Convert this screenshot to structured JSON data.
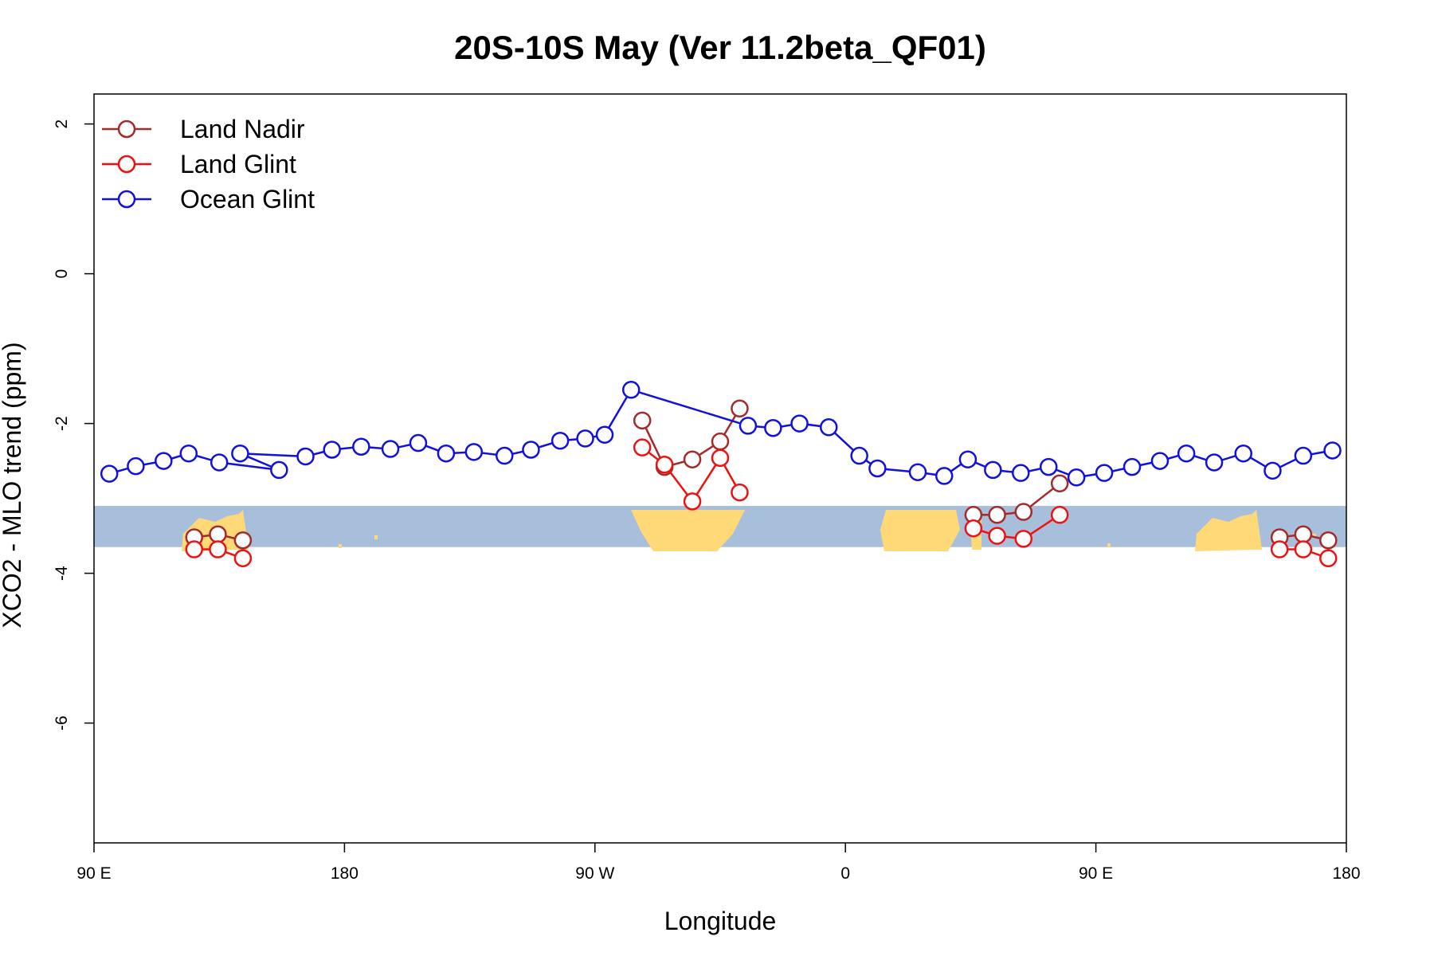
{
  "chart_data": {
    "type": "line",
    "title": "20S-10S May (Ver 11.2beta_QF01)",
    "xlabel": "Longitude",
    "ylabel": "XCO2 - MLO trend (ppm)",
    "xlim": [
      90,
      540
    ],
    "ylim": [
      -7.6,
      2.4
    ],
    "x_ticks": [
      {
        "value": 90,
        "label": "90 E"
      },
      {
        "value": 180,
        "label": "180"
      },
      {
        "value": 270,
        "label": "90 W"
      },
      {
        "value": 360,
        "label": "0"
      },
      {
        "value": 450,
        "label": "90 E"
      },
      {
        "value": 540,
        "label": "180"
      }
    ],
    "y_ticks": [
      {
        "value": 2,
        "label": "2"
      },
      {
        "value": 0,
        "label": "0"
      },
      {
        "value": -2,
        "label": "-2"
      },
      {
        "value": -4,
        "label": "-4"
      },
      {
        "value": -6,
        "label": "-6"
      }
    ],
    "legend_position": "top-left",
    "latitude_band": {
      "y_top": -3.1,
      "y_bottom": -3.65,
      "ocean_color": "#a8bfdc",
      "land_color": "#ffd878"
    },
    "series": [
      {
        "name": "Land Nadir",
        "color": "#a52a2a",
        "segments": [
          {
            "x": [
              126,
              134.5,
              143.5
            ],
            "y": [
              -3.52,
              -3.48,
              -3.56
            ]
          },
          {
            "x": [
              287,
              295,
              305,
              315,
              322
            ],
            "y": [
              -1.96,
              -2.58,
              -2.48,
              -2.24,
              -1.8
            ]
          },
          {
            "x": [
              406,
              414.5,
              424,
              437
            ],
            "y": [
              -3.22,
              -3.22,
              -3.18,
              -2.8
            ]
          },
          {
            "x": [
              516,
              524.5,
              533.5
            ],
            "y": [
              -3.52,
              -3.48,
              -3.56
            ]
          }
        ]
      },
      {
        "name": "Land Glint",
        "color": "#ee1111",
        "segments": [
          {
            "x": [
              126,
              134.5,
              143.5
            ],
            "y": [
              -3.68,
              -3.68,
              -3.8
            ]
          },
          {
            "x": [
              287,
              295,
              305,
              315,
              322
            ],
            "y": [
              -2.32,
              -2.55,
              -3.04,
              -2.46,
              -2.92
            ]
          },
          {
            "x": [
              406,
              414.5,
              424,
              437
            ],
            "y": [
              -3.4,
              -3.5,
              -3.54,
              -3.22
            ]
          },
          {
            "x": [
              516,
              524.5,
              533.5
            ],
            "y": [
              -3.68,
              -3.68,
              -3.8
            ]
          }
        ]
      },
      {
        "name": "Ocean Glint",
        "color": "#1111dd",
        "segments": [
          {
            "x": [
              95.5,
              105,
              115,
              124,
              135,
              156.5,
              142.5,
              166,
              175.5,
              186,
              196.5,
              206.5,
              216.5,
              226.5,
              237.5,
              247,
              257.5,
              266.5,
              273.5,
              283,
              325,
              334,
              343.5,
              354,
              365,
              371.5,
              386,
              395.5,
              404,
              413,
              423,
              433,
              443,
              453,
              463,
              473,
              482.5,
              492.5,
              503,
              513.5,
              524.5,
              535
            ],
            "y": [
              -2.67,
              -2.57,
              -2.5,
              -2.4,
              -2.52,
              -2.62,
              -2.4,
              -2.44,
              -2.35,
              -2.31,
              -2.34,
              -2.26,
              -2.4,
              -2.38,
              -2.43,
              -2.35,
              -2.23,
              -2.2,
              -2.15,
              -1.55,
              -2.03,
              -2.06,
              -2.0,
              -2.05,
              -2.43,
              -2.6,
              -2.65,
              -2.7,
              -2.48,
              -2.62,
              -2.66,
              -2.58,
              -2.72,
              -2.66,
              -2.58,
              -2.5,
              -2.4,
              -2.52,
              -2.4,
              -2.63,
              -2.43,
              -2.36
            ]
          }
        ]
      }
    ]
  }
}
